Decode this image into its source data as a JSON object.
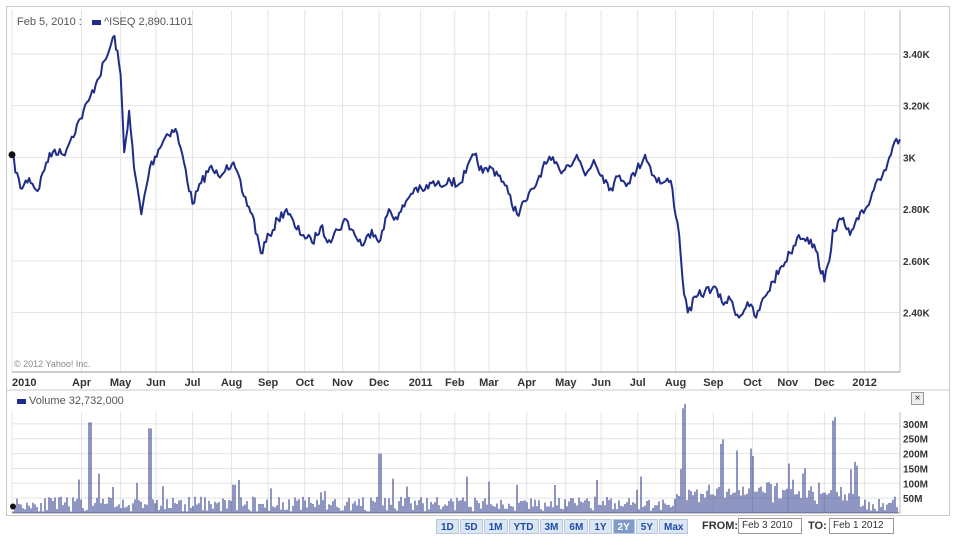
{
  "header": {
    "date": "Feb 5, 2010 :",
    "series_label": "^ISEQ 2,890.1101",
    "volume_label": "Volume 32,732,000",
    "copyright": "© 2012 Yahoo! Inc."
  },
  "chart_data": [
    {
      "type": "line",
      "title": "",
      "series": [
        {
          "name": "^ISEQ"
        }
      ],
      "x_ticks": [
        "2010",
        "Apr",
        "May",
        "Jun",
        "Jul",
        "Aug",
        "Sep",
        "Oct",
        "Nov",
        "Dec",
        "2011",
        "Feb",
        "Mar",
        "Apr",
        "May",
        "Jun",
        "Jul",
        "Aug",
        "Sep",
        "Oct",
        "Nov",
        "Dec",
        "2012"
      ],
      "y_ticks": [
        "3.40K",
        "3.20K",
        "3K",
        "2.80K",
        "2.60K",
        "2.40K"
      ],
      "y_tick_values": [
        3400,
        3200,
        3000,
        2800,
        2600,
        2400
      ],
      "ylim": [
        2170,
        3570
      ],
      "x_range": [
        "2010-02-03",
        "2012-02-01"
      ],
      "grid": true,
      "color": "#1f2d86",
      "points": [
        [
          "2010-02-03",
          3010
        ],
        [
          "2010-02-10",
          2880
        ],
        [
          "2010-02-17",
          2920
        ],
        [
          "2010-02-24",
          2870
        ],
        [
          "2010-03-03",
          2980
        ],
        [
          "2010-03-10",
          3030
        ],
        [
          "2010-03-17",
          3010
        ],
        [
          "2010-03-24",
          3080
        ],
        [
          "2010-03-31",
          3150
        ],
        [
          "2010-04-07",
          3220
        ],
        [
          "2010-04-14",
          3300
        ],
        [
          "2010-04-21",
          3380
        ],
        [
          "2010-04-28",
          3470
        ],
        [
          "2010-05-03",
          3320
        ],
        [
          "2010-05-06",
          3020
        ],
        [
          "2010-05-10",
          3180
        ],
        [
          "2010-05-14",
          2960
        ],
        [
          "2010-05-20",
          2780
        ],
        [
          "2010-05-27",
          2960
        ],
        [
          "2010-06-03",
          3030
        ],
        [
          "2010-06-10",
          3090
        ],
        [
          "2010-06-17",
          3110
        ],
        [
          "2010-06-24",
          2980
        ],
        [
          "2010-07-01",
          2820
        ],
        [
          "2010-07-08",
          2900
        ],
        [
          "2010-07-15",
          2960
        ],
        [
          "2010-07-22",
          2930
        ],
        [
          "2010-07-29",
          2970
        ],
        [
          "2010-08-05",
          2960
        ],
        [
          "2010-08-12",
          2850
        ],
        [
          "2010-08-19",
          2780
        ],
        [
          "2010-08-26",
          2630
        ],
        [
          "2010-09-02",
          2700
        ],
        [
          "2010-09-09",
          2760
        ],
        [
          "2010-09-16",
          2800
        ],
        [
          "2010-09-23",
          2730
        ],
        [
          "2010-09-30",
          2700
        ],
        [
          "2010-10-07",
          2670
        ],
        [
          "2010-10-14",
          2730
        ],
        [
          "2010-10-21",
          2680
        ],
        [
          "2010-10-28",
          2720
        ],
        [
          "2010-11-04",
          2760
        ],
        [
          "2010-11-11",
          2700
        ],
        [
          "2010-11-18",
          2660
        ],
        [
          "2010-11-25",
          2720
        ],
        [
          "2010-12-02",
          2680
        ],
        [
          "2010-12-09",
          2800
        ],
        [
          "2010-12-16",
          2760
        ],
        [
          "2010-12-23",
          2830
        ],
        [
          "2010-12-30",
          2880
        ],
        [
          "2011-01-06",
          2870
        ],
        [
          "2011-01-13",
          2900
        ],
        [
          "2011-01-20",
          2890
        ],
        [
          "2011-01-27",
          2920
        ],
        [
          "2011-02-03",
          2890
        ],
        [
          "2011-02-10",
          2940
        ],
        [
          "2011-02-17",
          3010
        ],
        [
          "2011-02-24",
          2940
        ],
        [
          "2011-03-03",
          2960
        ],
        [
          "2011-03-10",
          2930
        ],
        [
          "2011-03-17",
          2860
        ],
        [
          "2011-03-24",
          2780
        ],
        [
          "2011-03-31",
          2830
        ],
        [
          "2011-04-07",
          2880
        ],
        [
          "2011-04-14",
          2960
        ],
        [
          "2011-04-21",
          2990
        ],
        [
          "2011-04-28",
          2950
        ],
        [
          "2011-05-05",
          2970
        ],
        [
          "2011-05-12",
          3010
        ],
        [
          "2011-05-19",
          2930
        ],
        [
          "2011-05-26",
          2990
        ],
        [
          "2011-06-02",
          2930
        ],
        [
          "2011-06-09",
          2880
        ],
        [
          "2011-06-16",
          2930
        ],
        [
          "2011-06-23",
          2900
        ],
        [
          "2011-06-30",
          2950
        ],
        [
          "2011-07-07",
          3010
        ],
        [
          "2011-07-14",
          2930
        ],
        [
          "2011-07-21",
          2900
        ],
        [
          "2011-07-28",
          2910
        ],
        [
          "2011-08-04",
          2700
        ],
        [
          "2011-08-08",
          2470
        ],
        [
          "2011-08-11",
          2400
        ],
        [
          "2011-08-18",
          2460
        ],
        [
          "2011-08-25",
          2480
        ],
        [
          "2011-09-01",
          2500
        ],
        [
          "2011-09-08",
          2440
        ],
        [
          "2011-09-15",
          2450
        ],
        [
          "2011-09-22",
          2380
        ],
        [
          "2011-09-29",
          2440
        ],
        [
          "2011-10-06",
          2380
        ],
        [
          "2011-10-13",
          2460
        ],
        [
          "2011-10-20",
          2520
        ],
        [
          "2011-10-27",
          2580
        ],
        [
          "2011-11-03",
          2630
        ],
        [
          "2011-11-10",
          2700
        ],
        [
          "2011-11-17",
          2690
        ],
        [
          "2011-11-24",
          2640
        ],
        [
          "2011-12-01",
          2520
        ],
        [
          "2011-12-05",
          2600
        ],
        [
          "2011-12-08",
          2720
        ],
        [
          "2011-12-15",
          2760
        ],
        [
          "2011-12-22",
          2700
        ],
        [
          "2011-12-29",
          2760
        ],
        [
          "2012-01-05",
          2810
        ],
        [
          "2012-01-12",
          2900
        ],
        [
          "2012-01-19",
          2950
        ],
        [
          "2012-01-26",
          3040
        ],
        [
          "2012-02-01",
          3070
        ]
      ]
    },
    {
      "type": "bar",
      "title": "",
      "series": [
        {
          "name": "Volume"
        }
      ],
      "y_ticks": [
        "300M",
        "250M",
        "200M",
        "150M",
        "100M",
        "50M"
      ],
      "y_tick_values": [
        300,
        250,
        200,
        150,
        100,
        50
      ],
      "y_unit": "M",
      "ylim": [
        0,
        340
      ],
      "grid": true,
      "color": "#1f2d86",
      "spikes": [
        [
          "2010-04-08",
          305
        ],
        [
          "2010-05-27",
          285
        ],
        [
          "2010-08-04",
          95
        ],
        [
          "2010-10-14",
          70
        ],
        [
          "2010-12-02",
          200
        ],
        [
          "2011-08-08",
          320
        ],
        [
          "2011-09-08",
          210
        ],
        [
          "2011-09-20",
          180
        ],
        [
          "2011-10-03",
          160
        ],
        [
          "2011-11-14",
          100
        ],
        [
          "2011-12-09",
          290
        ],
        [
          "2011-12-27",
          130
        ]
      ],
      "baseline_volume": 30,
      "noise": 25
    }
  ],
  "range_buttons": [
    "1D",
    "5D",
    "1M",
    "YTD",
    "3M",
    "6M",
    "1Y",
    "2Y",
    "5Y",
    "Max"
  ],
  "range_selected": "2Y",
  "from_label": "FROM:",
  "from_value": "Feb 3 2010",
  "to_label": "TO:",
  "to_value": "Feb 1 2012"
}
